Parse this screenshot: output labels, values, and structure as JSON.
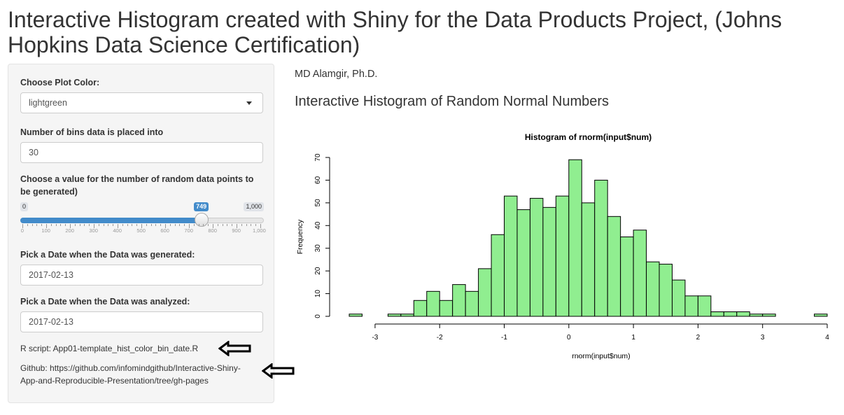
{
  "page": {
    "title": "Interactive Histogram created with Shiny for the Data Products Project, (Johns Hopkins Data Science Certification)"
  },
  "sidebar": {
    "color_label": "Choose Plot Color:",
    "color_value": "lightgreen",
    "bins_label": "Number of bins data is placed into",
    "bins_value": "30",
    "points_label": "Choose a value for the number of random data points to be generated)",
    "slider": {
      "min_label": "0",
      "max_label": "1,000",
      "value_label": "749",
      "min": 0,
      "max": 1000,
      "value": 749,
      "grid_labels": [
        "0",
        "100",
        "200",
        "300",
        "400",
        "500",
        "600",
        "700",
        "800",
        "900",
        "1,000"
      ]
    },
    "date_generated_label": "Pick a Date when the Data was generated:",
    "date_generated_value": "2017-02-13",
    "date_analyzed_label": "Pick a Date when the Data was analyzed:",
    "date_analyzed_value": "2017-02-13",
    "rscript_text": "R script: App01-template_hist_color_bin_date.R",
    "github_line1": "Github: https://github.com/infomindgithub/Interactive-Shiny-",
    "github_line2": "App-and-Reproducible-Presentation/tree/gh-pages"
  },
  "main": {
    "author": "MD Alamgir, Ph.D.",
    "subtitle": "Interactive Histogram of Random Normal Numbers"
  },
  "colors": {
    "bar_fill": "#90ee90",
    "bar_stroke": "#000000",
    "slider_accent": "#428bca",
    "arrow": "#000000"
  },
  "chart_data": {
    "type": "bar",
    "title": "Histogram of rnorm(input$num)",
    "xlabel": "rnorm(input$num)",
    "ylabel": "Frequency",
    "bin_width": 0.2,
    "bin_start": -3.4,
    "counts": [
      1,
      0,
      0,
      1,
      1,
      7,
      11,
      7,
      14,
      11,
      21,
      36,
      53,
      47,
      52,
      48,
      53,
      69,
      50,
      60,
      44,
      35,
      38,
      24,
      23,
      16,
      9,
      9,
      2,
      2,
      2,
      1,
      1,
      0,
      0,
      0,
      1
    ],
    "xlim": [
      -3.4,
      4
    ],
    "ylim": [
      0,
      70
    ],
    "xticks": [
      -3,
      -2,
      -1,
      0,
      1,
      2,
      3,
      4
    ],
    "yticks": [
      0,
      10,
      20,
      30,
      40,
      50,
      60,
      70
    ]
  }
}
